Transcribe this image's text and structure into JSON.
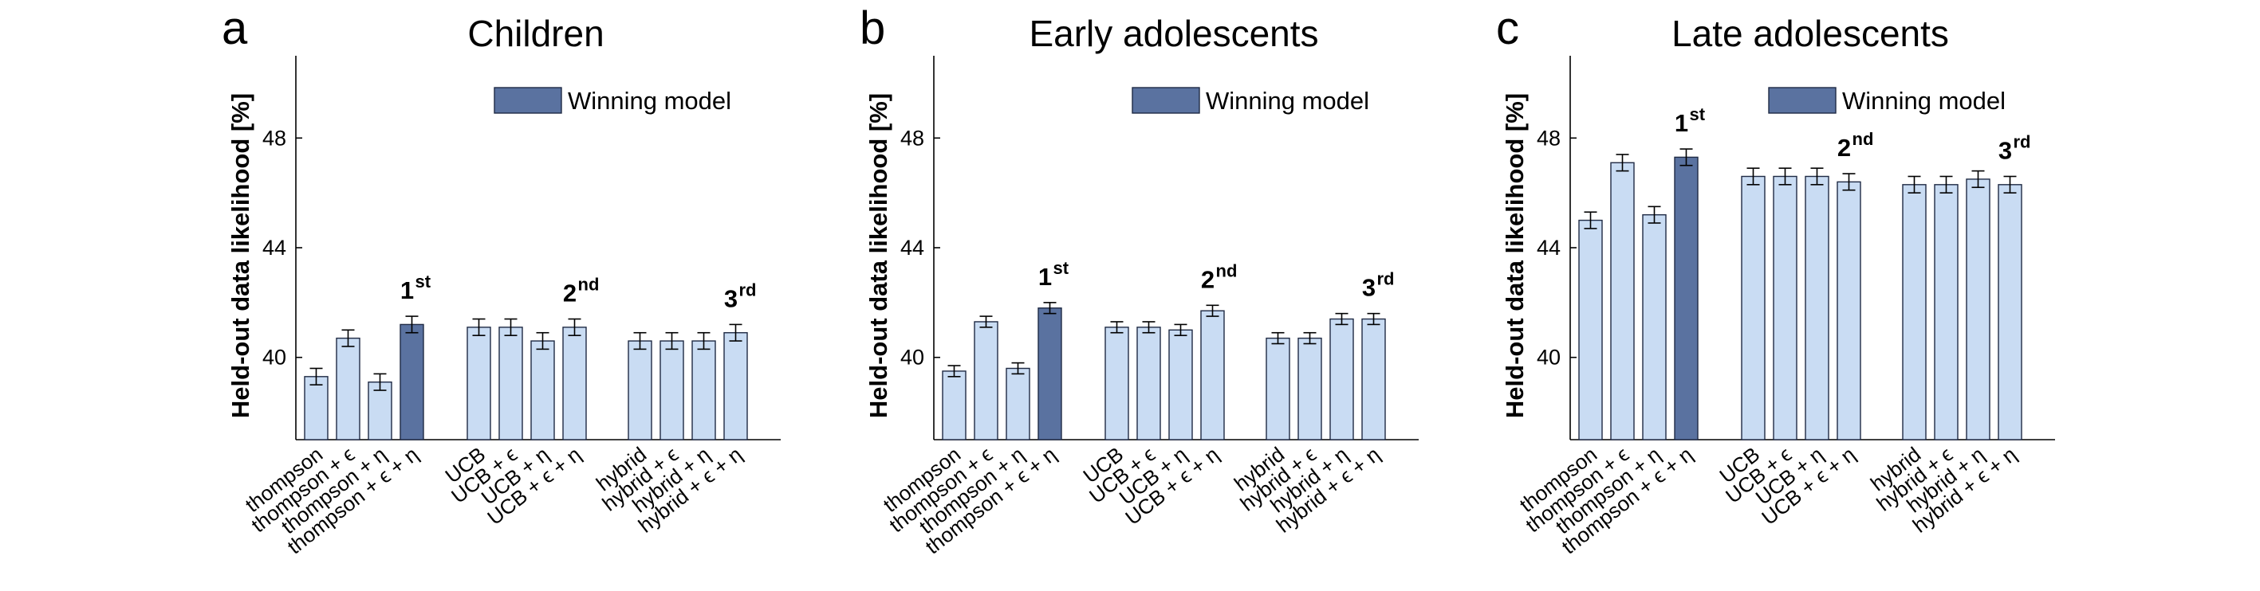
{
  "figure": {
    "legend_label": "Winning model",
    "colors": {
      "bar": "#c9dcf3",
      "winning": "#5a72a0",
      "edge": "#1f2a44"
    }
  },
  "chart_data": [
    {
      "type": "bar",
      "panel": "a",
      "title": "Children",
      "ylabel": "Held-out data likelihood [%]",
      "ylim": [
        37,
        51
      ],
      "yticks": [
        40,
        44,
        48
      ],
      "legend": "top-right",
      "categories": [
        "thompson",
        "thompson + ϵ",
        "thompson + η",
        "thompson + ϵ + η",
        "UCB",
        "UCB + ϵ",
        "UCB + η",
        "UCB + ϵ + η",
        "hybrid",
        "hybrid + ϵ",
        "hybrid + η",
        "hybrid + ϵ + η"
      ],
      "groups": [
        [
          "thompson",
          "thompson + ϵ",
          "thompson + η",
          "thompson + ϵ + η"
        ],
        [
          "UCB",
          "UCB + ϵ",
          "UCB + η",
          "UCB + ϵ + η"
        ],
        [
          "hybrid",
          "hybrid + ϵ",
          "hybrid + η",
          "hybrid + ϵ + η"
        ]
      ],
      "values": [
        39.3,
        40.7,
        39.1,
        41.2,
        41.1,
        41.1,
        40.6,
        41.1,
        40.6,
        40.6,
        40.6,
        40.9
      ],
      "errors": [
        0.3,
        0.3,
        0.3,
        0.3,
        0.3,
        0.3,
        0.3,
        0.3,
        0.3,
        0.3,
        0.3,
        0.3
      ],
      "winning_index": 3,
      "ranks": [
        {
          "index": 3,
          "label": "1",
          "sup": "st"
        },
        {
          "index": 7,
          "label": "2",
          "sup": "nd"
        },
        {
          "index": 11,
          "label": "3",
          "sup": "rd"
        }
      ]
    },
    {
      "type": "bar",
      "panel": "b",
      "title": "Early adolescents",
      "ylabel": "Held-out data likelihood [%]",
      "ylim": [
        37,
        51
      ],
      "yticks": [
        40,
        44,
        48
      ],
      "legend": "top-right",
      "categories": [
        "thompson",
        "thompson + ϵ",
        "thompson + η",
        "thompson + ϵ + η",
        "UCB",
        "UCB + ϵ",
        "UCB + η",
        "UCB + ϵ + η",
        "hybrid",
        "hybrid + ϵ",
        "hybrid + η",
        "hybrid + ϵ + η"
      ],
      "groups": [
        [
          "thompson",
          "thompson + ϵ",
          "thompson + η",
          "thompson + ϵ + η"
        ],
        [
          "UCB",
          "UCB + ϵ",
          "UCB + η",
          "UCB + ϵ + η"
        ],
        [
          "hybrid",
          "hybrid + ϵ",
          "hybrid + η",
          "hybrid + ϵ + η"
        ]
      ],
      "values": [
        39.5,
        41.3,
        39.6,
        41.8,
        41.1,
        41.1,
        41.0,
        41.7,
        40.7,
        40.7,
        41.4,
        41.4
      ],
      "errors": [
        0.2,
        0.2,
        0.2,
        0.2,
        0.2,
        0.2,
        0.2,
        0.2,
        0.2,
        0.2,
        0.2,
        0.2
      ],
      "winning_index": 3,
      "ranks": [
        {
          "index": 3,
          "label": "1",
          "sup": "st"
        },
        {
          "index": 7,
          "label": "2",
          "sup": "nd"
        },
        {
          "index": 11,
          "label": "3",
          "sup": "rd"
        }
      ]
    },
    {
      "type": "bar",
      "panel": "c",
      "title": "Late adolescents",
      "ylabel": "Held-out data likelihood [%]",
      "ylim": [
        37,
        51
      ],
      "yticks": [
        40,
        44,
        48
      ],
      "legend": "top-right",
      "categories": [
        "thompson",
        "thompson + ϵ",
        "thompson + η",
        "thompson + ϵ + η",
        "UCB",
        "UCB + ϵ",
        "UCB + η",
        "UCB + ϵ + η",
        "hybrid",
        "hybrid + ϵ",
        "hybrid + η",
        "hybrid + ϵ + η"
      ],
      "groups": [
        [
          "thompson",
          "thompson + ϵ",
          "thompson + η",
          "thompson + ϵ + η"
        ],
        [
          "UCB",
          "UCB + ϵ",
          "UCB + η",
          "UCB + ϵ + η"
        ],
        [
          "hybrid",
          "hybrid + ϵ",
          "hybrid + η",
          "hybrid + ϵ + η"
        ]
      ],
      "values": [
        45.0,
        47.1,
        45.2,
        47.3,
        46.6,
        46.6,
        46.6,
        46.4,
        46.3,
        46.3,
        46.5,
        46.3
      ],
      "errors": [
        0.3,
        0.3,
        0.3,
        0.3,
        0.3,
        0.3,
        0.3,
        0.3,
        0.3,
        0.3,
        0.3,
        0.3
      ],
      "winning_index": 3,
      "ranks": [
        {
          "index": 3,
          "label": "1",
          "sup": "st"
        },
        {
          "index": 7,
          "label": "2",
          "sup": "nd"
        },
        {
          "index": 11,
          "label": "3",
          "sup": "rd"
        }
      ]
    }
  ]
}
